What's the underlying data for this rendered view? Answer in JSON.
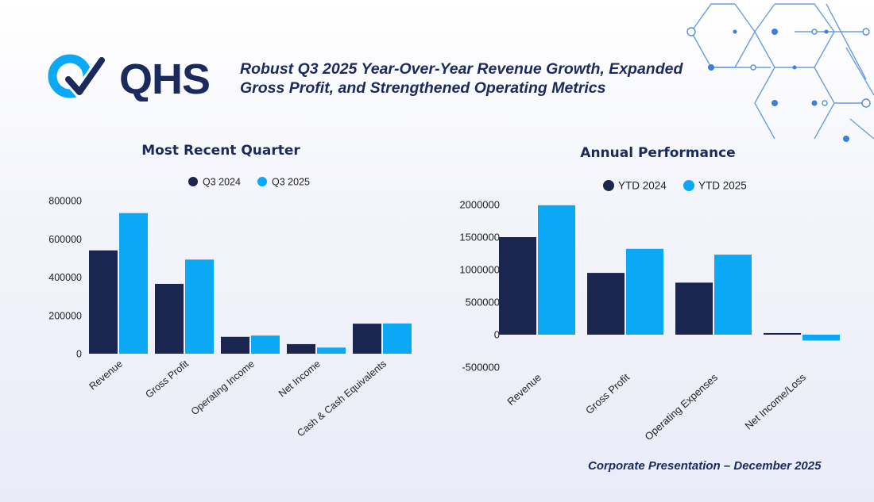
{
  "brand": {
    "logo_text": "QHS",
    "colors": {
      "navy": "#1b2a5c",
      "accent": "#0aa8f5",
      "dark_series": "#1a2650",
      "light_series": "#0aa8f5"
    }
  },
  "header": {
    "headline_line1": "Robust Q3 2025 Year-Over-Year Revenue Growth, Expanded",
    "headline_line2": "Gross Profit, and Strengthened Operating Metrics"
  },
  "footer": {
    "text": "Corporate Presentation – December 2025"
  },
  "chart_data": [
    {
      "type": "bar",
      "title": "Most Recent Quarter",
      "categories": [
        "Revenue",
        "Gross Profit",
        "Operating Income",
        "Net Income",
        "Cash & Cash Equivalents"
      ],
      "series": [
        {
          "name": "Q3 2024",
          "color": "#1a2650",
          "values": [
            540000,
            365000,
            88000,
            50000,
            157000
          ]
        },
        {
          "name": "Q3 2025",
          "color": "#0aa8f5",
          "values": [
            735000,
            492000,
            95000,
            32000,
            158000
          ]
        }
      ],
      "ylim": [
        0,
        800000
      ],
      "yticks": [
        0,
        200000,
        400000,
        600000,
        800000
      ],
      "ytick_labels": [
        "0",
        "200000",
        "400000",
        "600000",
        "800000"
      ],
      "xlabel": "",
      "ylabel": "",
      "grid": false,
      "legend": "top-center"
    },
    {
      "type": "bar",
      "title": "Annual Performance",
      "categories": [
        "Revenue",
        "Gross Profit",
        "Operating Expenses",
        "Net Income/Loss"
      ],
      "series": [
        {
          "name": "YTD 2024",
          "color": "#1a2650",
          "values": [
            1500000,
            950000,
            800000,
            25000
          ]
        },
        {
          "name": "YTD 2025",
          "color": "#0aa8f5",
          "values": [
            1990000,
            1320000,
            1230000,
            -90000
          ]
        }
      ],
      "ylim": [
        -500000,
        2000000
      ],
      "yticks": [
        -500000,
        0,
        500000,
        1000000,
        1500000,
        2000000
      ],
      "ytick_labels": [
        "-500000",
        "0",
        "500000",
        "1000000",
        "1500000",
        "2000000"
      ],
      "xlabel": "",
      "ylabel": "",
      "grid": false,
      "legend": "top-center"
    }
  ]
}
